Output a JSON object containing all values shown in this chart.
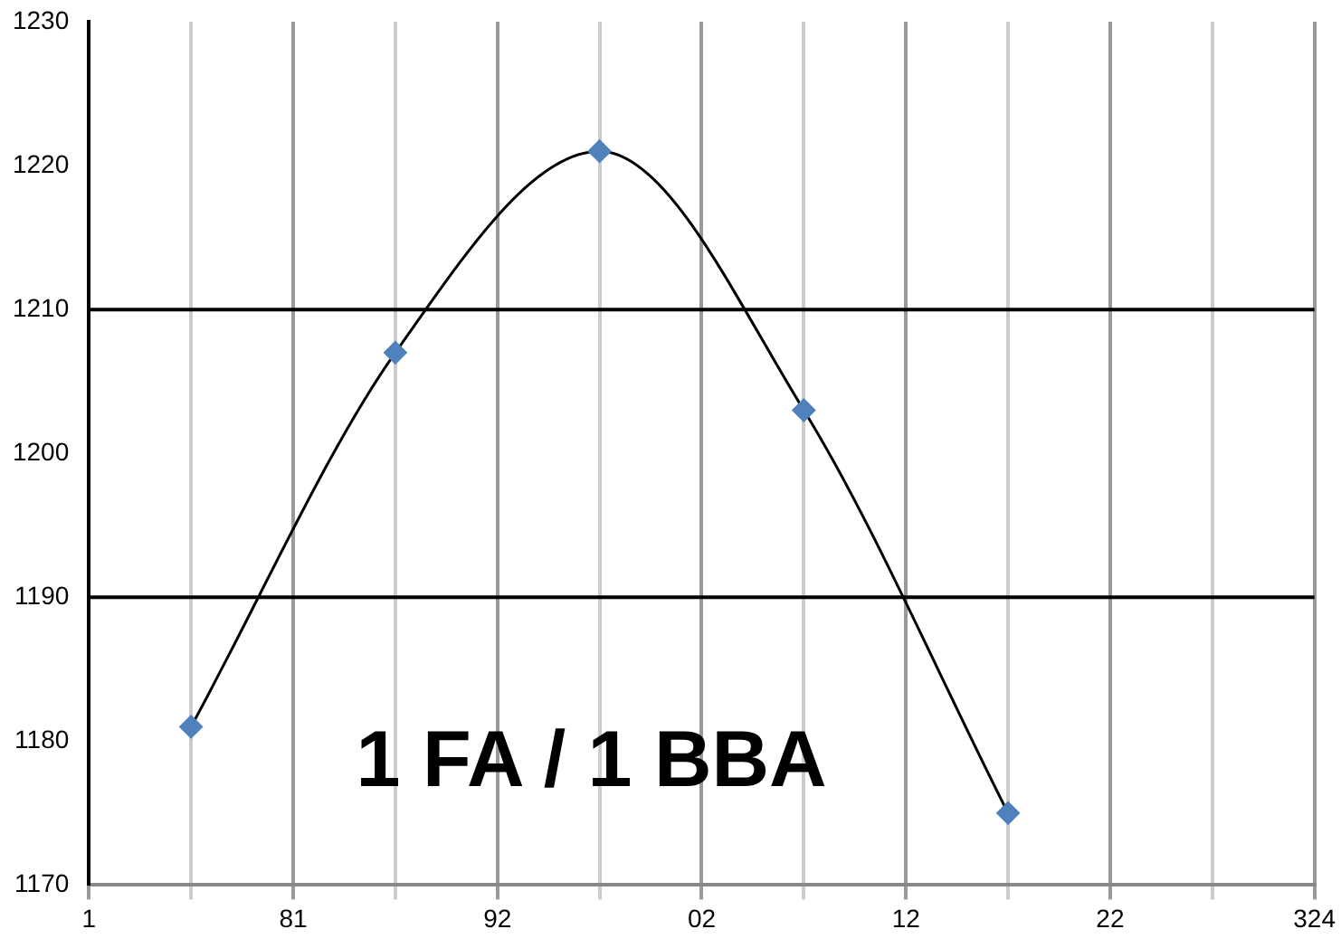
{
  "chart_data": {
    "type": "line",
    "categories": [
      "1",
      null,
      "81",
      null,
      "92",
      null,
      "02",
      null,
      "12",
      null,
      "22",
      null,
      "324"
    ],
    "series": [
      {
        "color": "#000000",
        "values": [
          null,
          1181,
          null,
          1207,
          null,
          1221,
          null,
          1203,
          null,
          1175,
          null,
          null,
          null
        ],
        "marker": "none"
      },
      {
        "type": "scatter",
        "color": "#4f81bd",
        "values": [
          null,
          1181,
          null,
          1207,
          null,
          1221,
          null,
          1203,
          null,
          1175,
          null,
          null,
          null
        ],
        "marker": "diamond"
      }
    ],
    "ylim": [
      1170,
      1230
    ],
    "yticks": [
      1170,
      1180,
      1190,
      1200,
      1210,
      1220,
      1230
    ],
    "grid": "x",
    "legend": false,
    "ref_lines": [
      {
        "axis": "y",
        "value": 1190,
        "color": "#000000"
      },
      {
        "axis": "y",
        "value": 1210,
        "color": "#000000"
      }
    ],
    "annotations": [
      "1 FA / 1 BBA"
    ]
  }
}
